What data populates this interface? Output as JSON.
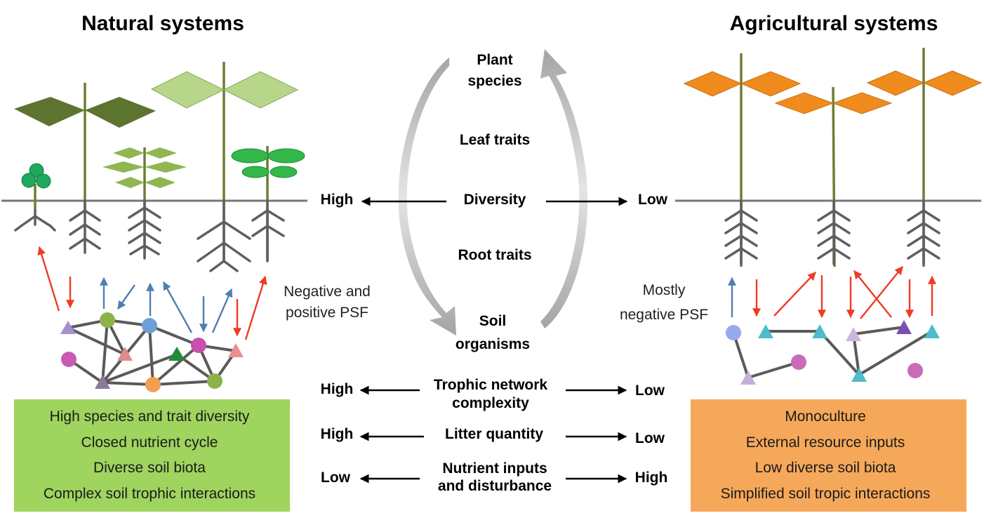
{
  "natural": {
    "title": "Natural systems",
    "psf_label": [
      "Negative and",
      "positive PSF"
    ],
    "box_items": [
      "High species and trait diversity",
      "Closed nutrient cycle",
      "Diverse soil biota",
      "Complex soil trophic interactions"
    ],
    "box_color": "#9fd45f"
  },
  "agricultural": {
    "title": "Agricultural systems",
    "psf_label": [
      "Mostly",
      "negative PSF"
    ],
    "box_items": [
      "Monoculture",
      "External resource inputs",
      "Low diverse soil biota",
      "Simplified soil tropic interactions"
    ],
    "box_color": "#f6a85a"
  },
  "cycle": {
    "top": [
      "Plant",
      "species"
    ],
    "leaf": "Leaf traits",
    "diversity": "Diversity",
    "root": "Root traits",
    "soil": [
      "Soil",
      "organisms"
    ],
    "diversity_left": "High",
    "diversity_right": "Low"
  },
  "comparisons": [
    {
      "label": [
        "Trophic network",
        "complexity"
      ],
      "left": "High",
      "right": "Low"
    },
    {
      "label": [
        "Litter quantity"
      ],
      "left": "High",
      "right": "Low"
    },
    {
      "label": [
        "Nutrient inputs",
        "and disturbance"
      ],
      "left": "Low",
      "right": "High"
    }
  ],
  "colors": {
    "negative_feedback": "#ef3b24",
    "positive_feedback": "#4f7fb0",
    "crop_leaf": "#f08c1e",
    "cycle_arrow": "#a8a8a8"
  }
}
